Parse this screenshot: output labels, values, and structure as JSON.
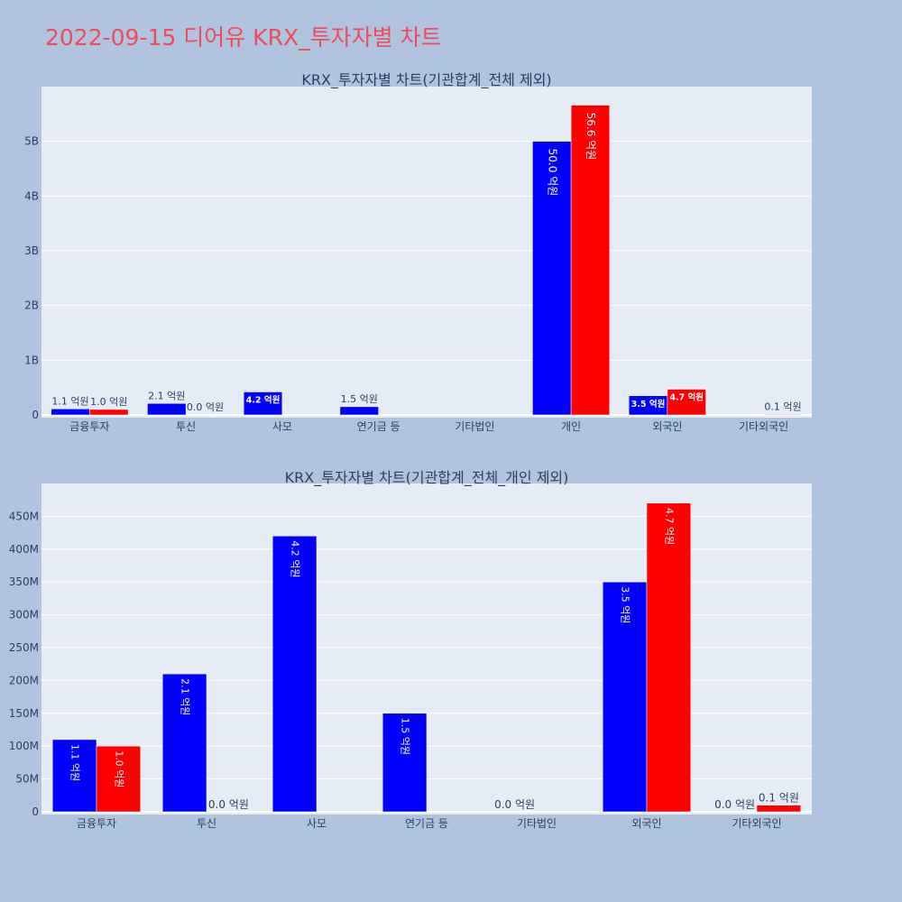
{
  "title": "2022-09-15 디어유 KRX_투자자별 차트",
  "colors": {
    "buy": "#0000ff",
    "sell": "#ff0000",
    "plot_bg": "#e5ecf6",
    "page_bg": "#b0c4de",
    "title": "#ef4a5f"
  },
  "chart_data": [
    {
      "type": "bar",
      "title": "KRX_투자자별 차트(기관합계_전체 제외)",
      "categories": [
        "금융투자",
        "투신",
        "사모",
        "연기금 등",
        "기타법인",
        "개인",
        "외국인",
        "기타외국인"
      ],
      "ylim": [
        0,
        6000000000
      ],
      "yticks": [
        0,
        1000000000,
        2000000000,
        3000000000,
        4000000000,
        5000000000
      ],
      "ytick_labels": [
        "0",
        "1B",
        "2B",
        "3B",
        "4B",
        "5B"
      ],
      "grid": true,
      "series": [
        {
          "color": "#0000ff",
          "values": [
            110000000,
            210000000,
            420000000,
            150000000,
            null,
            5000000000,
            350000000,
            null
          ],
          "labels": [
            "1.1 억원",
            "2.1 억원",
            "4.2 억원",
            "1.5 억원",
            null,
            "50.0 억원",
            "3.5 억원",
            null
          ]
        },
        {
          "color": "#ff0000",
          "values": [
            100000000,
            0,
            null,
            null,
            null,
            5660000000,
            470000000,
            10000000
          ],
          "labels": [
            "1.0 억원",
            "0.0 억원",
            null,
            null,
            null,
            "56.6 억원",
            "4.7 억원",
            "0.1 억원"
          ]
        }
      ]
    },
    {
      "type": "bar",
      "title": "KRX_투자자별 차트(기관합계_전체_개인 제외)",
      "categories": [
        "금융투자",
        "투신",
        "사모",
        "연기금 등",
        "기타법인",
        "외국인",
        "기타외국인"
      ],
      "ylim": [
        0,
        500000000
      ],
      "yticks": [
        0,
        50000000,
        100000000,
        150000000,
        200000000,
        250000000,
        300000000,
        350000000,
        400000000,
        450000000
      ],
      "ytick_labels": [
        "0",
        "50M",
        "100M",
        "150M",
        "200M",
        "250M",
        "300M",
        "350M",
        "400M",
        "450M"
      ],
      "grid": true,
      "series": [
        {
          "color": "#0000ff",
          "values": [
            110000000,
            210000000,
            420000000,
            150000000,
            0,
            350000000,
            0
          ],
          "labels": [
            "1.1 억원",
            "2.1 억원",
            "4.2 억원",
            "1.5 억원",
            "0.0 억원",
            "3.5 억원",
            "0.0 억원"
          ]
        },
        {
          "color": "#ff0000",
          "values": [
            100000000,
            0,
            null,
            null,
            null,
            470000000,
            10000000
          ],
          "labels": [
            "1.0 억원",
            "0.0 억원",
            null,
            null,
            null,
            "4.7 억원",
            "0.1 억원"
          ]
        }
      ]
    }
  ]
}
